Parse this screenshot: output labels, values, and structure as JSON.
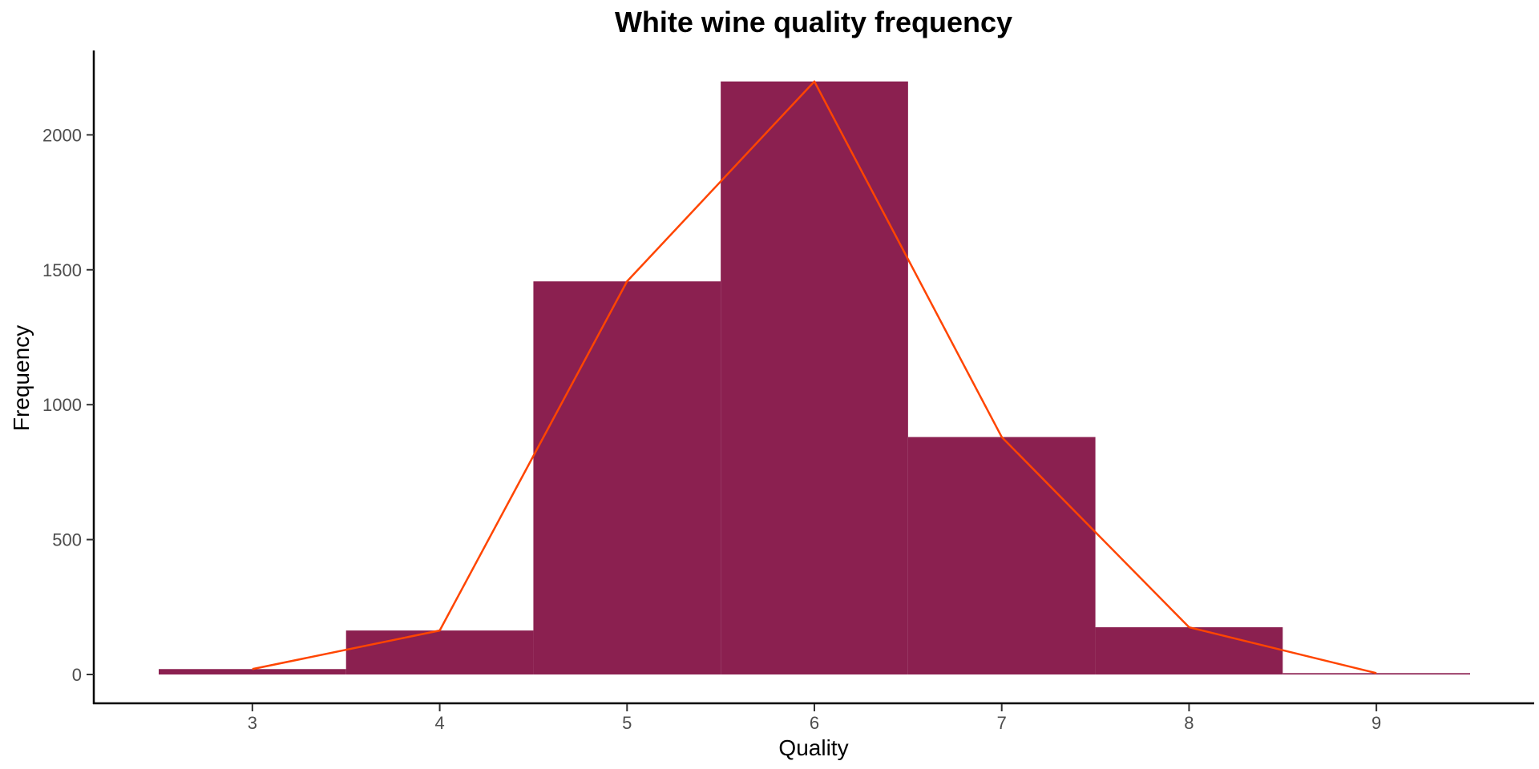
{
  "colors": {
    "bar_fill": "#8b2050",
    "line_color": "#ff4500",
    "axis": "#000000",
    "tick_text": "#4d4d4d"
  },
  "chart_data": {
    "type": "bar",
    "title": "White wine quality frequency",
    "xlabel": "Quality",
    "ylabel": "Frequency",
    "x_range": [
      2.5,
      9.5
    ],
    "ylim": [
      0,
      2200
    ],
    "x_ticks": [
      3,
      4,
      5,
      6,
      7,
      8,
      9
    ],
    "y_ticks": [
      0,
      500,
      1000,
      1500,
      2000
    ],
    "bin_width": 1,
    "categories": [
      3,
      4,
      5,
      6,
      7,
      8,
      9
    ],
    "series": [
      {
        "name": "histogram",
        "kind": "bar",
        "values": [
          20,
          163,
          1457,
          2198,
          880,
          175,
          5
        ]
      },
      {
        "name": "frequency polygon",
        "kind": "line",
        "values": [
          20,
          163,
          1457,
          2198,
          880,
          175,
          5
        ]
      }
    ],
    "grid": false,
    "legend": "none"
  }
}
